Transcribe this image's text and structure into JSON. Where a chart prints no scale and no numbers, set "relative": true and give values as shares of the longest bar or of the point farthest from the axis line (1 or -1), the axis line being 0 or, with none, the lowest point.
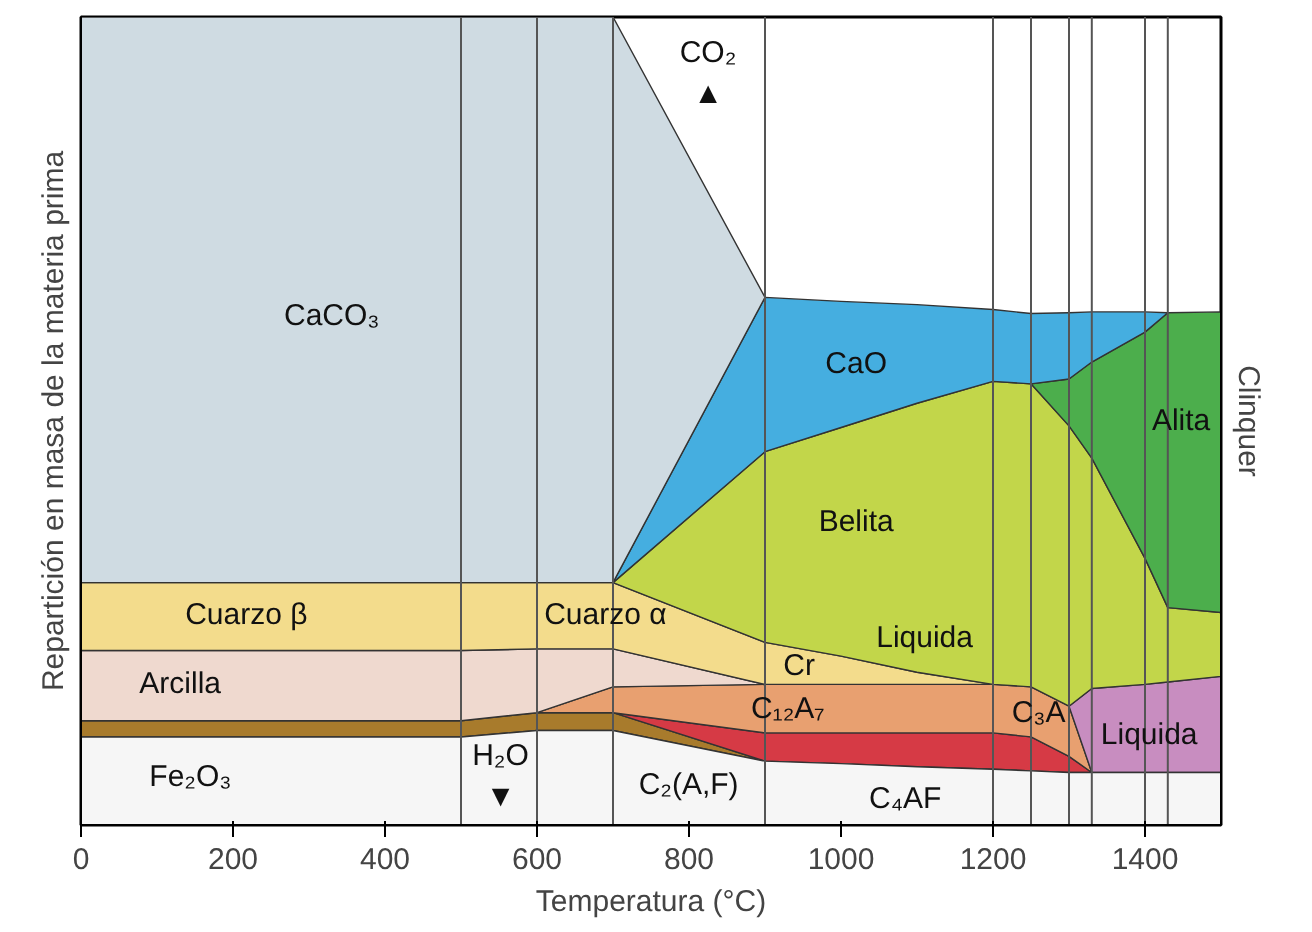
{
  "chart_data": {
    "type": "area",
    "stacked": true,
    "relative": true,
    "xlabel": "Temperatura (°C)",
    "ylabel": "Repartición en masa de la materia prima",
    "y2label": "Clinquer",
    "x": [
      0,
      500,
      600,
      700,
      900,
      1000,
      1100,
      1200,
      1250,
      1300,
      1330,
      1400,
      1430,
      1500
    ],
    "xlim": [
      0,
      1500
    ],
    "xticks": [
      0,
      200,
      400,
      600,
      800,
      1000,
      1200,
      1400
    ],
    "grid": false,
    "series": [
      {
        "color": "#f6f6f6",
        "values": [
          0.109,
          0.109,
          0.117,
          0.117,
          0.079,
          0.076,
          0.072,
          0.069,
          0.067,
          0.065,
          0.065,
          0.065,
          0.065,
          0.065
        ]
      },
      {
        "color": "#a87b2c",
        "values": [
          0.02,
          0.02,
          0.022,
          0.022,
          0,
          null,
          null,
          null,
          null,
          null,
          null,
          null,
          null,
          null
        ]
      },
      {
        "color": "#d63a45",
        "values": [
          null,
          null,
          null,
          0,
          0.035,
          0.038,
          0.042,
          0.045,
          0.042,
          0.02,
          0,
          null,
          null,
          null
        ]
      },
      {
        "color": "#e8a070",
        "values": [
          null,
          null,
          0,
          0.032,
          0.06,
          0.06,
          0.06,
          0.06,
          0.062,
          0.062,
          0,
          null,
          null,
          null
        ]
      },
      {
        "color": "#c88dc0",
        "values": [
          null,
          null,
          null,
          null,
          null,
          null,
          null,
          null,
          null,
          0,
          0.104,
          0.109,
          0.112,
          0.119
        ]
      },
      {
        "color": "#efd9cf",
        "values": [
          0.087,
          0.087,
          0.079,
          0.047,
          0,
          null,
          null,
          null,
          null,
          null,
          null,
          null,
          null,
          null
        ]
      },
      {
        "color": "#f3dc8c",
        "values": [
          0.084,
          0.084,
          0.082,
          0.082,
          0.052,
          0.035,
          0.015,
          0,
          null,
          null,
          null,
          null,
          null,
          null
        ]
      },
      {
        "color": "#c2d64a",
        "values": [
          null,
          null,
          null,
          0,
          0.236,
          0.283,
          0.333,
          0.375,
          0.375,
          0.347,
          0.285,
          0.156,
          0.092,
          0.079
        ]
      },
      {
        "color": "#4cae4c",
        "values": [
          null,
          null,
          null,
          null,
          null,
          null,
          null,
          null,
          0,
          0.058,
          0.119,
          0.28,
          0.365,
          0.372
        ]
      },
      {
        "color": "#45aee0",
        "values": [
          null,
          null,
          null,
          0,
          0.191,
          0.156,
          0.122,
          0.089,
          0.087,
          0.082,
          0.062,
          0.025,
          0,
          null
        ]
      },
      {
        "color": "#cfdbe2",
        "values": [
          0.7,
          0.7,
          0.7,
          0.7,
          0,
          null,
          null,
          null,
          null,
          null,
          null,
          null,
          null,
          null
        ]
      }
    ],
    "ref_lines": [
      {
        "axis": "x",
        "value": 500,
        "color": "#555555"
      },
      {
        "axis": "x",
        "value": 600,
        "color": "#555555"
      },
      {
        "axis": "x",
        "value": 700,
        "color": "#555555"
      },
      {
        "axis": "x",
        "value": 900,
        "color": "#555555"
      },
      {
        "axis": "x",
        "value": 1200,
        "color": "#555555"
      },
      {
        "axis": "x",
        "value": 1250,
        "color": "#555555"
      },
      {
        "axis": "x",
        "value": 1300,
        "color": "#555555"
      },
      {
        "axis": "x",
        "value": 1330,
        "color": "#555555"
      },
      {
        "axis": "x",
        "value": 1400,
        "color": "#555555"
      },
      {
        "axis": "x",
        "value": 1430,
        "color": "#555555"
      }
    ],
    "annotations": [
      "CaCO₃",
      "CO₂\n▲",
      "CaO",
      "Belita",
      "Alita",
      "Cuarzo β",
      "Cuarzo α",
      "Arcilla",
      "Cr",
      "Liquida",
      "C₁₂A₇",
      "C₃A",
      "Liquida",
      "Fe₂O₃",
      "H₂O\n▼",
      "C₂(A,F)",
      "C₄AF"
    ]
  }
}
